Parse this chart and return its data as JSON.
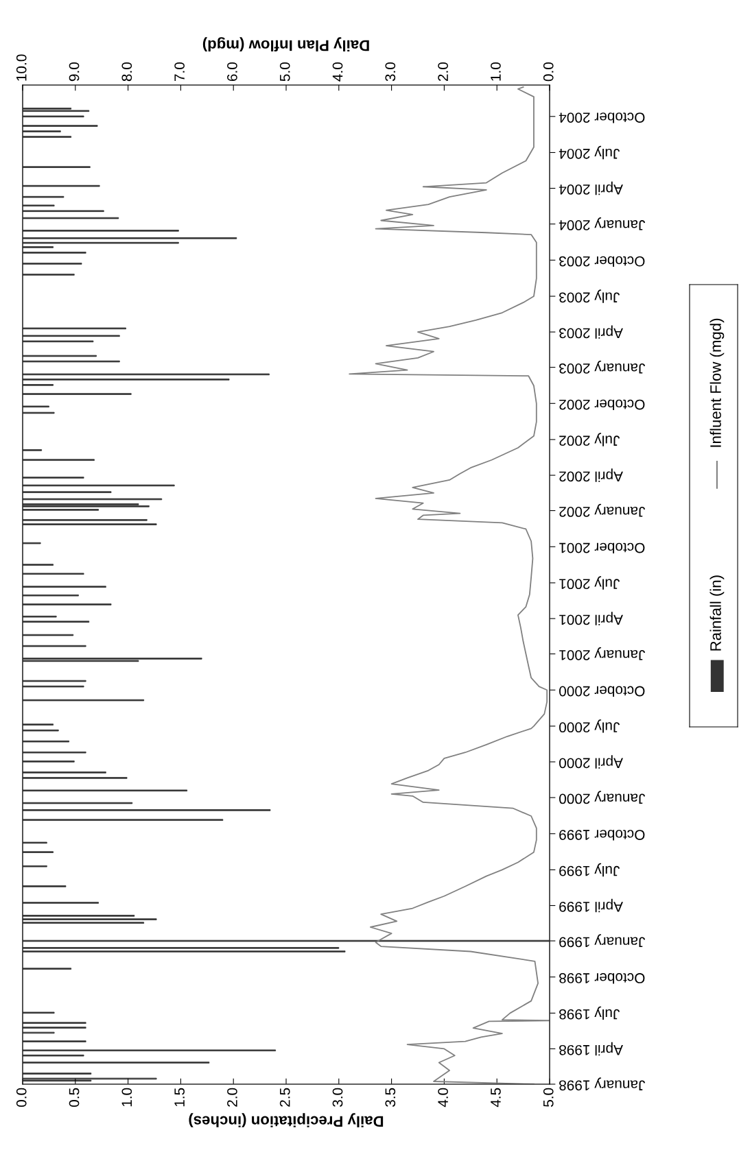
{
  "chart_data": {
    "type": "bar",
    "orientation": "horizontal",
    "xlabel": "Daily Precipitation (inches)",
    "x2label": "Daily Plan Inflow (mgd)",
    "legend": "right",
    "grid": false,
    "xlim": [
      0,
      5
    ],
    "xticks": [
      {
        "value": 0,
        "label": "0.0"
      },
      {
        "value": 0.5,
        "label": "0.5"
      },
      {
        "value": 1,
        "label": "1.0"
      },
      {
        "value": 1.5,
        "label": "1.5"
      },
      {
        "value": 2,
        "label": "2.0"
      },
      {
        "value": 2.5,
        "label": "2.5"
      },
      {
        "value": 3,
        "label": "3.0"
      },
      {
        "value": 3.5,
        "label": "3.5"
      },
      {
        "value": 4,
        "label": "4.0"
      },
      {
        "value": 4.5,
        "label": "4.5"
      },
      {
        "value": 5,
        "label": "5.0"
      }
    ],
    "x2lim": [
      10,
      0
    ],
    "x2ticks": [
      {
        "value": 10,
        "label": "10.0"
      },
      {
        "value": 9,
        "label": "9.0"
      },
      {
        "value": 8,
        "label": "8.0"
      },
      {
        "value": 7,
        "label": "7.0"
      },
      {
        "value": 6,
        "label": "6.0"
      },
      {
        "value": 5,
        "label": "5.0"
      },
      {
        "value": 4,
        "label": "4.0"
      },
      {
        "value": 3,
        "label": "3.0"
      },
      {
        "value": 2,
        "label": "2.0"
      },
      {
        "value": 1,
        "label": "1.0"
      },
      {
        "value": 0,
        "label": "0.0"
      }
    ],
    "ylim": [
      "1998-01-01",
      "2004-12-20"
    ],
    "yticks": [
      {
        "value": "1998-01-01",
        "label": "January 1998"
      },
      {
        "value": "1998-04-01",
        "label": "April 1998"
      },
      {
        "value": "1998-07-01",
        "label": "July 1998"
      },
      {
        "value": "1998-10-01",
        "label": "October 1998"
      },
      {
        "value": "1999-01-01",
        "label": "January 1999"
      },
      {
        "value": "1999-04-01",
        "label": "April 1999"
      },
      {
        "value": "1999-07-01",
        "label": "July 1999"
      },
      {
        "value": "1999-10-01",
        "label": "October 1999"
      },
      {
        "value": "2000-01-01",
        "label": "January 2000"
      },
      {
        "value": "2000-04-01",
        "label": "April 2000"
      },
      {
        "value": "2000-07-01",
        "label": "July 2000"
      },
      {
        "value": "2000-10-01",
        "label": "October 2000"
      },
      {
        "value": "2001-01-01",
        "label": "January 2001"
      },
      {
        "value": "2001-04-01",
        "label": "April 2001"
      },
      {
        "value": "2001-07-01",
        "label": "July 2001"
      },
      {
        "value": "2001-10-01",
        "label": "October 2001"
      },
      {
        "value": "2002-01-01",
        "label": "January 2002"
      },
      {
        "value": "2002-04-01",
        "label": "April 2002"
      },
      {
        "value": "2002-07-01",
        "label": "July 2002"
      },
      {
        "value": "2002-10-01",
        "label": "October 2002"
      },
      {
        "value": "2003-01-01",
        "label": "January 2003"
      },
      {
        "value": "2003-04-01",
        "label": "April 2003"
      },
      {
        "value": "2003-07-01",
        "label": "July 2003"
      },
      {
        "value": "2003-10-01",
        "label": "October 2003"
      },
      {
        "value": "2004-01-01",
        "label": "January 2004"
      },
      {
        "value": "2004-04-01",
        "label": "April 2004"
      },
      {
        "value": "2004-07-01",
        "label": "July 2004"
      },
      {
        "value": "2004-10-01",
        "label": "October 2004"
      }
    ],
    "series": [
      {
        "name": "Rainfall (in)",
        "color": "#333333",
        "x": [
          "1998-01-10",
          "1998-01-15",
          "1998-01-28",
          "1998-02-25",
          "1998-03-15",
          "1998-03-28",
          "1998-04-20",
          "1998-05-12",
          "1998-05-25",
          "1998-06-06",
          "1998-07-02",
          "1998-10-22",
          "1998-12-05",
          "1998-12-14",
          "1999-01-01",
          "1999-02-16",
          "1999-02-25",
          "1999-03-06",
          "1999-04-08",
          "1999-05-20",
          "1999-07-10",
          "1999-08-15",
          "1999-09-08",
          "1999-11-05",
          "1999-11-30",
          "1999-12-18",
          "2000-01-19",
          "2000-02-20",
          "2000-03-05",
          "2000-04-02",
          "2000-04-25",
          "2000-05-23",
          "2000-06-20",
          "2000-07-05",
          "2000-09-05",
          "2000-10-10",
          "2000-10-24",
          "2000-12-14",
          "2000-12-20",
          "2001-01-21",
          "2001-02-18",
          "2001-03-24",
          "2001-04-06",
          "2001-05-07",
          "2001-05-30",
          "2001-06-21",
          "2001-07-24",
          "2001-08-16",
          "2001-10-10",
          "2001-11-27",
          "2001-12-08",
          "2002-01-03",
          "2002-01-12",
          "2002-01-17",
          "2002-01-30",
          "2002-02-17",
          "2002-03-06",
          "2002-03-26",
          "2002-05-10",
          "2002-06-04",
          "2002-09-07",
          "2002-09-23",
          "2002-10-25",
          "2002-11-17",
          "2002-12-01",
          "2002-12-14",
          "2003-01-16",
          "2003-01-30",
          "2003-03-08",
          "2003-03-22",
          "2003-04-10",
          "2003-08-25",
          "2003-09-22",
          "2003-10-20",
          "2003-11-03",
          "2003-11-14",
          "2003-11-26",
          "2003-12-15",
          "2004-01-16",
          "2004-02-03",
          "2004-02-17",
          "2004-03-10",
          "2004-04-07",
          "2004-05-25",
          "2004-08-10",
          "2004-08-24",
          "2004-09-07",
          "2004-10-01",
          "2004-10-15",
          "2004-10-21"
        ],
        "values": [
          0.65,
          1.27,
          0.65,
          1.77,
          0.58,
          2.4,
          0.6,
          0.3,
          0.6,
          0.6,
          0.3,
          0.46,
          3.06,
          3.0,
          5.0,
          1.15,
          1.27,
          1.06,
          0.72,
          0.41,
          0.23,
          0.29,
          0.23,
          1.9,
          2.35,
          1.04,
          1.56,
          0.99,
          0.79,
          0.49,
          0.6,
          0.44,
          0.34,
          0.29,
          1.15,
          0.58,
          0.6,
          1.1,
          1.7,
          0.6,
          0.48,
          0.63,
          0.32,
          0.84,
          0.53,
          0.79,
          0.58,
          0.29,
          0.17,
          1.27,
          1.18,
          0.72,
          1.2,
          1.1,
          1.32,
          0.84,
          1.44,
          0.58,
          0.68,
          0.18,
          0.3,
          0.25,
          1.03,
          0.29,
          1.96,
          2.34,
          0.92,
          0.7,
          0.67,
          0.92,
          0.98,
          0.49,
          0.56,
          0.6,
          0.29,
          1.48,
          2.03,
          1.48,
          0.91,
          0.77,
          0.3,
          0.39,
          0.73,
          0.64,
          0.46,
          0.36,
          0.71,
          0.58,
          0.63,
          0.46
        ]
      },
      {
        "name": "Influent Flow (mgd)",
        "type": "line",
        "axis": "x2",
        "color": "#808080",
        "x": [
          "1998-01-01",
          "1998-01-08",
          "1998-02-05",
          "1998-02-25",
          "1998-03-15",
          "1998-04-01",
          "1998-04-12",
          "1998-04-20",
          "1998-05-01",
          "1998-05-10",
          "1998-05-24",
          "1998-06-10",
          "1998-06-12",
          "1998-06-14",
          "1998-07-01",
          "1998-08-01",
          "1998-09-15",
          "1998-11-10",
          "1998-12-05",
          "1998-12-18",
          "1998-12-28",
          "1999-01-05",
          "1999-01-20",
          "1999-02-05",
          "1999-02-20",
          "1999-03-10",
          "1999-03-25",
          "1999-04-10",
          "1999-04-25",
          "1999-05-20",
          "1999-06-15",
          "1999-07-01",
          "1999-07-20",
          "1999-08-15",
          "1999-09-15",
          "1999-10-15",
          "1999-11-15",
          "1999-12-05",
          "1999-12-20",
          "2000-01-05",
          "2000-01-10",
          "2000-01-20",
          "2000-02-05",
          "2000-02-20",
          "2000-03-10",
          "2000-03-25",
          "2000-04-10",
          "2000-04-25",
          "2000-05-15",
          "2000-06-05",
          "2000-06-25",
          "2000-07-01",
          "2000-08-01",
          "2000-09-01",
          "2000-10-01",
          "2000-10-10",
          "2000-11-01",
          "2000-12-01",
          "2001-01-01",
          "2001-02-01",
          "2001-03-10",
          "2001-04-10",
          "2001-05-01",
          "2001-06-01",
          "2001-07-15",
          "2001-09-01",
          "2001-10-15",
          "2001-11-15",
          "2001-12-01",
          "2001-12-10",
          "2001-12-20",
          "2001-12-25",
          "2002-01-05",
          "2002-01-20",
          "2002-02-01",
          "2002-02-15",
          "2002-03-01",
          "2002-03-20",
          "2002-04-05",
          "2002-04-20",
          "2002-05-10",
          "2002-06-10",
          "2002-07-10",
          "2002-08-15",
          "2002-10-01",
          "2002-11-15",
          "2002-12-10",
          "2002-12-15",
          "2002-12-25",
          "2003-01-10",
          "2003-01-25",
          "2003-02-10",
          "2003-02-25",
          "2003-03-15",
          "2003-04-01",
          "2003-04-15",
          "2003-05-01",
          "2003-05-20",
          "2003-06-15",
          "2003-07-01",
          "2003-08-15",
          "2003-10-01",
          "2003-11-15",
          "2003-12-05",
          "2003-12-10",
          "2003-12-20",
          "2003-12-28",
          "2004-01-10",
          "2004-01-25",
          "2004-02-05",
          "2004-02-20",
          "2004-03-10",
          "2004-03-28",
          "2004-04-05",
          "2004-04-15",
          "2004-05-10",
          "2004-06-10",
          "2004-07-15",
          "2004-09-01",
          "2004-10-15",
          "2004-11-20",
          "2004-12-10",
          "2004-12-15"
        ],
        "values": [
          0.3,
          2.2,
          1.9,
          2.1,
          1.8,
          2.0,
          2.7,
          1.6,
          1.3,
          0.9,
          1.45,
          1.15,
          0.0,
          0.9,
          0.75,
          0.35,
          0.22,
          0.28,
          1.5,
          3.2,
          3.3,
          3.2,
          3.0,
          3.4,
          2.9,
          3.2,
          2.6,
          2.3,
          2.0,
          1.6,
          1.2,
          0.9,
          0.6,
          0.3,
          0.25,
          0.25,
          0.35,
          0.7,
          2.4,
          2.6,
          3.0,
          2.1,
          3.0,
          2.7,
          2.3,
          2.1,
          2.0,
          1.6,
          1.2,
          0.8,
          0.35,
          0.3,
          0.1,
          0.05,
          0.05,
          0.2,
          0.35,
          0.4,
          0.45,
          0.5,
          0.55,
          0.6,
          0.45,
          0.38,
          0.35,
          0.32,
          0.35,
          0.45,
          0.9,
          2.5,
          2.4,
          1.7,
          2.6,
          2.4,
          3.3,
          2.2,
          2.6,
          1.9,
          1.7,
          1.5,
          1.1,
          0.6,
          0.3,
          0.25,
          0.25,
          0.3,
          0.4,
          3.8,
          2.7,
          3.3,
          2.5,
          2.2,
          3.1,
          2.1,
          2.5,
          1.9,
          1.4,
          0.9,
          0.5,
          0.3,
          0.25,
          0.25,
          0.25,
          0.35,
          1.2,
          3.3,
          2.2,
          3.2,
          2.6,
          3.1,
          2.3,
          1.9,
          1.2,
          2.4,
          1.2,
          0.9,
          0.45,
          0.3,
          0.3,
          0.3,
          0.3,
          0.6,
          0.5
        ]
      }
    ]
  }
}
